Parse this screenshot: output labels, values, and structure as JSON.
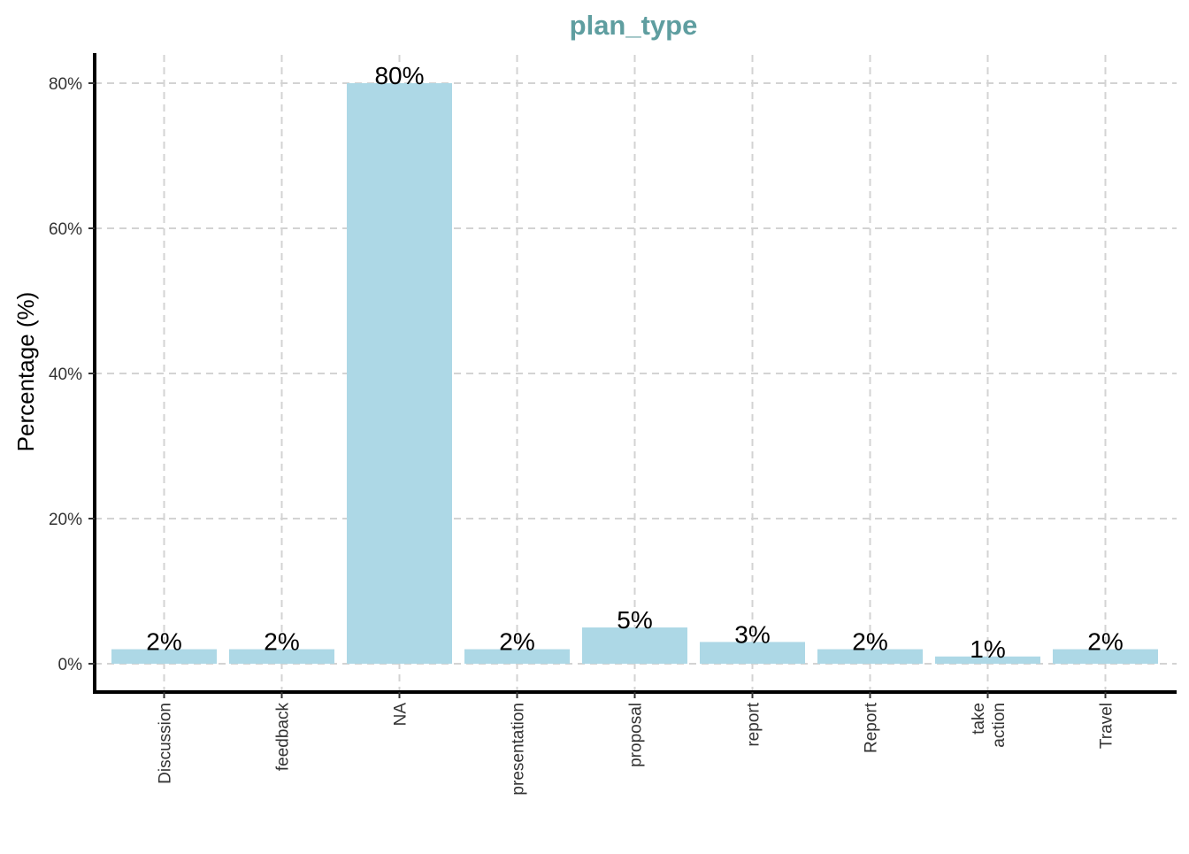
{
  "chart_data": {
    "type": "bar",
    "title": "plan_type",
    "ylabel": "Percentage (%)",
    "xlabel": "",
    "categories": [
      "Discussion",
      "feedback",
      "NA",
      "presentation",
      "proposal",
      "report",
      "Report",
      "take\naction",
      "Travel"
    ],
    "values": [
      2,
      2,
      80,
      2,
      5,
      3,
      2,
      1,
      2
    ],
    "data_labels": [
      "2%",
      "2%",
      "80%",
      "2%",
      "5%",
      "3%",
      "2%",
      "1%",
      "2%"
    ],
    "ylim": [
      -3.9,
      83.9
    ],
    "yticks": [
      0,
      20,
      40,
      60,
      80
    ],
    "ytick_labels": [
      "0%",
      "20%",
      "40%",
      "60%",
      "80%"
    ],
    "grid": true,
    "grid_style": "dashed",
    "bar_color": "#add8e6",
    "title_color": "#5f9ea0",
    "grid_color": "#d3d3d3",
    "axis_color": "#000000"
  }
}
